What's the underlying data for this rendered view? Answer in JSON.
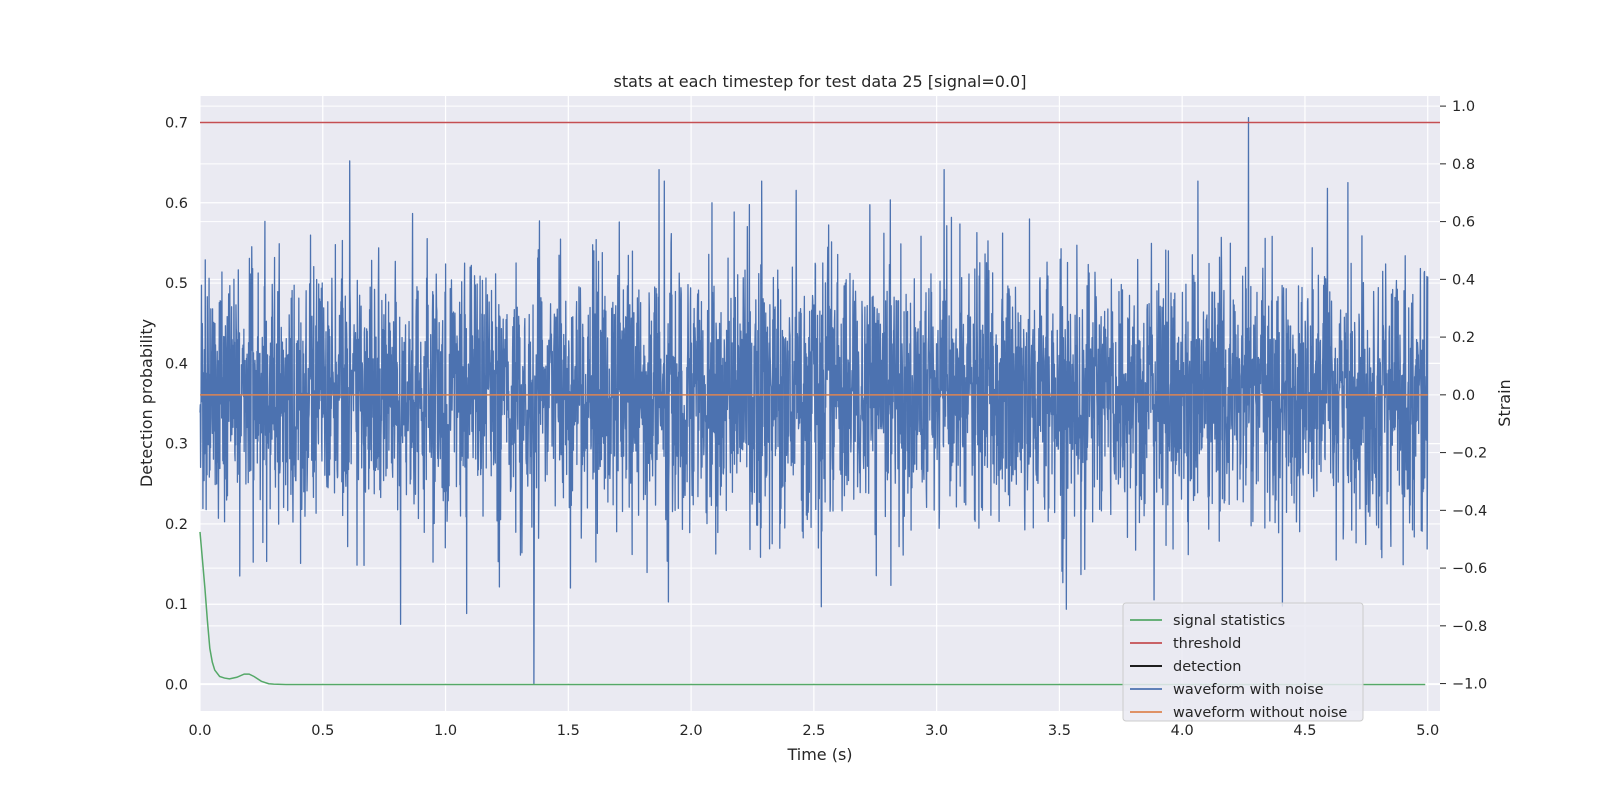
{
  "chart_data": {
    "type": "line",
    "title": "stats at each timestep for test data 25 [signal=0.0]",
    "xlabel": "Time (s)",
    "ylabel": "Detection probability",
    "ylabel_right": "Strain",
    "xlim": [
      0.0,
      5.05
    ],
    "ylim": [
      -0.033,
      0.733
    ],
    "ylim_right": [
      -1.095,
      1.035
    ],
    "x_ticks": [
      "0.0",
      "0.5",
      "1.0",
      "1.5",
      "2.0",
      "2.5",
      "3.0",
      "3.5",
      "4.0",
      "4.5",
      "5.0"
    ],
    "y_ticks": [
      "0.0",
      "0.1",
      "0.2",
      "0.3",
      "0.4",
      "0.5",
      "0.6",
      "0.7"
    ],
    "y_ticks_right": [
      "−1.0",
      "−0.8",
      "−0.6",
      "−0.4",
      "−0.2",
      "0.0",
      "0.2",
      "0.4",
      "0.6",
      "0.8",
      "1.0"
    ],
    "grid": true,
    "legend_position": "lower-right",
    "series": [
      {
        "name": "signal statistics",
        "color": "#55a868",
        "axis": "left",
        "x": [
          0.0,
          0.01,
          0.02,
          0.03,
          0.04,
          0.05,
          0.06,
          0.08,
          0.1,
          0.12,
          0.15,
          0.18,
          0.2,
          0.22,
          0.25,
          0.28,
          0.3,
          0.35,
          0.5,
          1.0,
          2.0,
          3.0,
          4.0,
          4.99
        ],
        "y": [
          0.19,
          0.155,
          0.12,
          0.08,
          0.045,
          0.028,
          0.018,
          0.01,
          0.008,
          0.007,
          0.009,
          0.013,
          0.013,
          0.01,
          0.004,
          0.001,
          0.0005,
          0.0,
          0.0,
          0.0,
          0.0,
          0.0,
          0.0,
          0.0
        ]
      },
      {
        "name": "threshold",
        "color": "#c44e52",
        "axis": "left",
        "x": [
          0.0,
          5.05
        ],
        "y": [
          0.7,
          0.7
        ]
      },
      {
        "name": "detection",
        "color": "#000000",
        "axis": "left",
        "x": [],
        "y": []
      },
      {
        "name": "waveform with noise",
        "color": "#4c72b0",
        "axis": "right",
        "description_range": [
          -1.0,
          1.0
        ],
        "x_range": [
          0.0,
          5.0
        ],
        "noise_std": 0.22,
        "notable_peaks": [
          {
            "x": 4.27,
            "y": 0.96
          },
          {
            "x": 0.61,
            "y": 0.81
          },
          {
            "x": 1.36,
            "y": -1.0
          },
          {
            "x": 1.87,
            "y": 0.78
          },
          {
            "x": 3.03,
            "y": 0.78
          }
        ]
      },
      {
        "name": "waveform without noise",
        "color": "#dd8452",
        "axis": "right",
        "x": [
          0.0,
          5.0
        ],
        "y": [
          0.0,
          0.0
        ]
      }
    ]
  }
}
